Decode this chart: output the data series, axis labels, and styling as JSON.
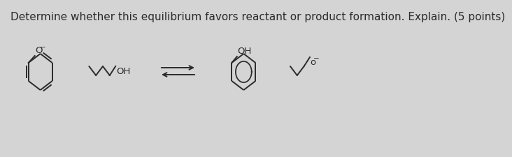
{
  "title": "Determine whether this equilibrium favors reactant or product formation. Explain. (5 points)",
  "bg_color": "#d4d4d4",
  "line_color": "#2a2a2a",
  "title_fontsize": 11.0
}
